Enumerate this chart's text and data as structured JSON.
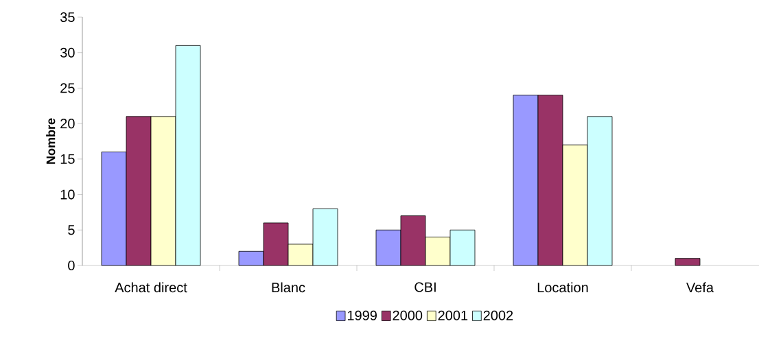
{
  "chart_data": {
    "type": "bar",
    "ylabel": "Nombre",
    "categories": [
      "Achat direct",
      "Blanc",
      "CBI",
      "Location",
      "Vefa"
    ],
    "series": [
      {
        "name": "1999",
        "color": "#9999ff",
        "values": [
          16,
          2,
          5,
          24,
          null
        ]
      },
      {
        "name": "2000",
        "color": "#993366",
        "values": [
          21,
          6,
          7,
          24,
          1
        ]
      },
      {
        "name": "2001",
        "color": "#ffffcc",
        "values": [
          21,
          3,
          4,
          17,
          null
        ]
      },
      {
        "name": "2002",
        "color": "#ccffff",
        "values": [
          31,
          8,
          5,
          21,
          null
        ]
      }
    ],
    "ylim": [
      0,
      35
    ],
    "yticks": [
      0,
      5,
      10,
      15,
      20,
      25,
      30,
      35
    ],
    "grid": false,
    "legend": "bottom"
  }
}
